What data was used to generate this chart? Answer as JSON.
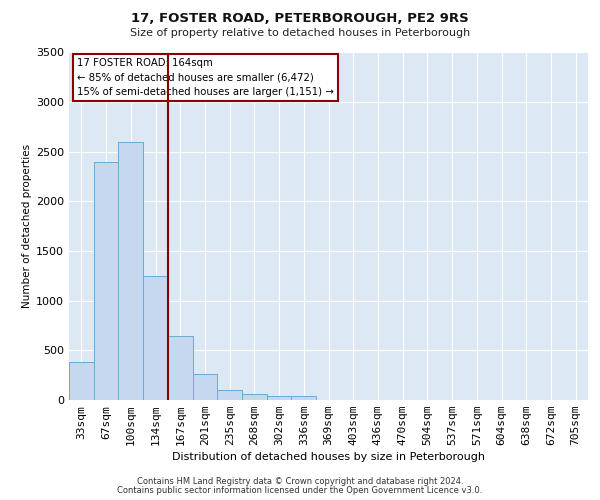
{
  "title1": "17, FOSTER ROAD, PETERBOROUGH, PE2 9RS",
  "title2": "Size of property relative to detached houses in Peterborough",
  "xlabel": "Distribution of detached houses by size in Peterborough",
  "ylabel": "Number of detached properties",
  "categories": [
    "33sqm",
    "67sqm",
    "100sqm",
    "134sqm",
    "167sqm",
    "201sqm",
    "235sqm",
    "268sqm",
    "302sqm",
    "336sqm",
    "369sqm",
    "403sqm",
    "436sqm",
    "470sqm",
    "504sqm",
    "537sqm",
    "571sqm",
    "604sqm",
    "638sqm",
    "672sqm",
    "705sqm"
  ],
  "bar_values": [
    380,
    2400,
    2600,
    1250,
    640,
    260,
    100,
    60,
    40,
    40,
    0,
    0,
    0,
    0,
    0,
    0,
    0,
    0,
    0,
    0,
    0
  ],
  "bar_color": "#c5d8ef",
  "bar_edge_color": "#6aaad4",
  "red_line_color": "#8b0000",
  "red_line_x": 3.5,
  "ylim": [
    0,
    3500
  ],
  "yticks": [
    0,
    500,
    1000,
    1500,
    2000,
    2500,
    3000,
    3500
  ],
  "annot_line1": "17 FOSTER ROAD: 164sqm",
  "annot_line2": "← 85% of detached houses are smaller (6,472)",
  "annot_line3": "15% of semi-detached houses are larger (1,151) →",
  "annot_edge_color": "#8b0000",
  "bg_color": "#ffffff",
  "plot_bg_color": "#dde8f5",
  "grid_color": "#ffffff",
  "footer1": "Contains HM Land Registry data © Crown copyright and database right 2024.",
  "footer2": "Contains public sector information licensed under the Open Government Licence v3.0."
}
